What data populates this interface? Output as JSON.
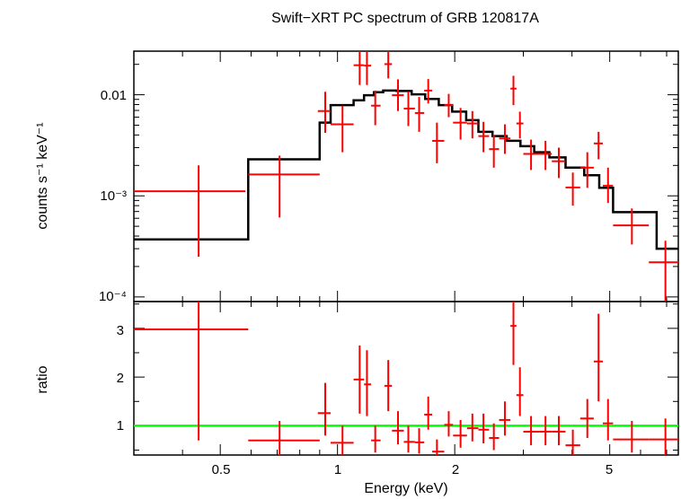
{
  "chart_data": {
    "type": "scatter",
    "title": "Swift−XRT PC spectrum of GRB 120817A",
    "xlabel": "Energy (keV)",
    "xscale": "log",
    "xlim": [
      0.3,
      7.5
    ],
    "x_ticks": [
      {
        "value": 0.5,
        "label": "0.5"
      },
      {
        "value": 1,
        "label": "1"
      },
      {
        "value": 2,
        "label": "2"
      },
      {
        "value": 5,
        "label": "5"
      }
    ],
    "colors": {
      "data": "#ff0000",
      "model": "#000000",
      "unity": "#00ff00",
      "axes": "#000000"
    },
    "panels": [
      {
        "name": "spectrum",
        "ylabel": "counts s⁻¹ keV⁻¹",
        "yscale": "log",
        "ylim": [
          9e-05,
          0.027
        ],
        "y_ticks": [
          {
            "value": 0.01,
            "label": "0.01"
          },
          {
            "value": 0.001,
            "label": "10⁻³"
          },
          {
            "value": 0.0001,
            "label": "10⁻⁴"
          }
        ],
        "model": {
          "name": "model",
          "type": "step",
          "points": [
            {
              "x0": 0.3,
              "x1": 0.59,
              "y": 0.00037
            },
            {
              "x0": 0.59,
              "x1": 0.9,
              "y": 0.0023
            },
            {
              "x0": 0.9,
              "x1": 0.96,
              "y": 0.0053
            },
            {
              "x0": 0.96,
              "x1": 1.1,
              "y": 0.0079
            },
            {
              "x0": 1.1,
              "x1": 1.17,
              "y": 0.0088
            },
            {
              "x0": 1.17,
              "x1": 1.24,
              "y": 0.0099
            },
            {
              "x0": 1.24,
              "x1": 1.31,
              "y": 0.0106
            },
            {
              "x0": 1.31,
              "x1": 1.42,
              "y": 0.011
            },
            {
              "x0": 1.42,
              "x1": 1.55,
              "y": 0.0109
            },
            {
              "x0": 1.55,
              "x1": 1.68,
              "y": 0.0101
            },
            {
              "x0": 1.68,
              "x1": 1.82,
              "y": 0.0091
            },
            {
              "x0": 1.82,
              "x1": 1.97,
              "y": 0.0079
            },
            {
              "x0": 1.97,
              "x1": 2.14,
              "y": 0.0068
            },
            {
              "x0": 2.14,
              "x1": 2.3,
              "y": 0.0056
            },
            {
              "x0": 2.3,
              "x1": 2.5,
              "y": 0.0043
            },
            {
              "x0": 2.5,
              "x1": 2.72,
              "y": 0.0039
            },
            {
              "x0": 2.72,
              "x1": 2.95,
              "y": 0.0035
            },
            {
              "x0": 2.95,
              "x1": 3.2,
              "y": 0.0031
            },
            {
              "x0": 3.2,
              "x1": 3.5,
              "y": 0.0027
            },
            {
              "x0": 3.5,
              "x1": 3.85,
              "y": 0.0024
            },
            {
              "x0": 3.85,
              "x1": 4.3,
              "y": 0.0019
            },
            {
              "x0": 4.3,
              "x1": 4.7,
              "y": 0.0016
            },
            {
              "x0": 4.7,
              "x1": 5.1,
              "y": 0.0012
            },
            {
              "x0": 5.1,
              "x1": 6.6,
              "y": 0.00069
            },
            {
              "x0": 6.6,
              "x1": 7.5,
              "y": 0.0003
            }
          ]
        },
        "series": [
          {
            "name": "data",
            "points": [
              {
                "x0": 0.3,
                "x1": 0.58,
                "x": 0.44,
                "y": 0.00111,
                "ylo": 0.00025,
                "yhi": 0.002
              },
              {
                "x0": 0.59,
                "x1": 0.9,
                "x": 0.71,
                "y": 0.00163,
                "ylo": 0.00061,
                "yhi": 0.0025
              },
              {
                "x0": 0.89,
                "x1": 0.96,
                "x": 0.93,
                "y": 0.0069,
                "ylo": 0.0042,
                "yhi": 0.0107
              },
              {
                "x0": 0.96,
                "x1": 1.1,
                "x": 1.03,
                "y": 0.0051,
                "ylo": 0.0027,
                "yhi": 0.0078
              },
              {
                "x0": 1.1,
                "x1": 1.17,
                "x": 1.14,
                "y": 0.0196,
                "ylo": 0.0125,
                "yhi": 0.028
              },
              {
                "x0": 1.17,
                "x1": 1.22,
                "x": 1.19,
                "y": 0.0194,
                "ylo": 0.0125,
                "yhi": 0.028
              },
              {
                "x0": 1.22,
                "x1": 1.29,
                "x": 1.25,
                "y": 0.0078,
                "ylo": 0.005,
                "yhi": 0.011
              },
              {
                "x0": 1.32,
                "x1": 1.38,
                "x": 1.35,
                "y": 0.0201,
                "ylo": 0.0145,
                "yhi": 0.028
              },
              {
                "x0": 1.38,
                "x1": 1.48,
                "x": 1.43,
                "y": 0.0099,
                "ylo": 0.0069,
                "yhi": 0.0142
              },
              {
                "x0": 1.48,
                "x1": 1.58,
                "x": 1.52,
                "y": 0.0073,
                "ylo": 0.0049,
                "yhi": 0.0108
              },
              {
                "x0": 1.58,
                "x1": 1.67,
                "x": 1.62,
                "y": 0.0066,
                "ylo": 0.0043,
                "yhi": 0.0095
              },
              {
                "x0": 1.67,
                "x1": 1.75,
                "x": 1.71,
                "y": 0.011,
                "ylo": 0.0082,
                "yhi": 0.0143
              },
              {
                "x0": 1.75,
                "x1": 1.88,
                "x": 1.8,
                "y": 0.0035,
                "ylo": 0.0021,
                "yhi": 0.0053
              },
              {
                "x0": 1.88,
                "x1": 1.98,
                "x": 1.93,
                "y": 0.0079,
                "ylo": 0.006,
                "yhi": 0.0102
              },
              {
                "x0": 1.98,
                "x1": 2.15,
                "x": 2.07,
                "y": 0.0053,
                "ylo": 0.0036,
                "yhi": 0.0074
              },
              {
                "x0": 2.15,
                "x1": 2.3,
                "x": 2.22,
                "y": 0.0052,
                "ylo": 0.0037,
                "yhi": 0.0069
              },
              {
                "x0": 2.3,
                "x1": 2.45,
                "x": 2.37,
                "y": 0.0039,
                "ylo": 0.0027,
                "yhi": 0.0054
              },
              {
                "x0": 2.45,
                "x1": 2.6,
                "x": 2.52,
                "y": 0.0029,
                "ylo": 0.0019,
                "yhi": 0.004
              },
              {
                "x0": 2.6,
                "x1": 2.78,
                "x": 2.69,
                "y": 0.0037,
                "ylo": 0.0026,
                "yhi": 0.0051
              },
              {
                "x0": 2.78,
                "x1": 2.88,
                "x": 2.83,
                "y": 0.0115,
                "ylo": 0.0079,
                "yhi": 0.0154
              },
              {
                "x0": 2.88,
                "x1": 3.0,
                "x": 2.94,
                "y": 0.0052,
                "ylo": 0.0037,
                "yhi": 0.0068
              },
              {
                "x0": 3.0,
                "x1": 3.3,
                "x": 3.14,
                "y": 0.0026,
                "ylo": 0.0018,
                "yhi": 0.0036
              },
              {
                "x0": 3.3,
                "x1": 3.55,
                "x": 3.42,
                "y": 0.0026,
                "ylo": 0.0018,
                "yhi": 0.0035
              },
              {
                "x0": 3.55,
                "x1": 3.85,
                "x": 3.7,
                "y": 0.0022,
                "ylo": 0.0015,
                "yhi": 0.003
              },
              {
                "x0": 3.85,
                "x1": 4.2,
                "x": 4.02,
                "y": 0.00121,
                "ylo": 0.0008,
                "yhi": 0.0017
              },
              {
                "x0": 4.2,
                "x1": 4.55,
                "x": 4.38,
                "y": 0.0019,
                "ylo": 0.0012,
                "yhi": 0.0027
              },
              {
                "x0": 4.55,
                "x1": 4.8,
                "x": 4.68,
                "y": 0.0033,
                "ylo": 0.0023,
                "yhi": 0.0043
              },
              {
                "x0": 4.8,
                "x1": 5.1,
                "x": 4.95,
                "y": 0.00126,
                "ylo": 0.00085,
                "yhi": 0.0019
              },
              {
                "x0": 5.1,
                "x1": 6.3,
                "x": 5.7,
                "y": 0.00051,
                "ylo": 0.00033,
                "yhi": 0.00075
              },
              {
                "x0": 6.3,
                "x1": 7.5,
                "x": 6.95,
                "y": 0.00022,
                "ylo": 9e-05,
                "yhi": 0.00036
              }
            ]
          }
        ]
      },
      {
        "name": "ratio",
        "ylabel": "ratio",
        "yscale": "linear",
        "ylim": [
          0.4,
          3.55
        ],
        "y_ticks": [
          {
            "value": 1,
            "label": "1"
          },
          {
            "value": 2,
            "label": "2"
          },
          {
            "value": 3,
            "label": "3"
          }
        ],
        "reference_line": {
          "y": 1,
          "color": "#00ff00"
        },
        "series": [
          {
            "name": "data",
            "points": [
              {
                "x0": 0.3,
                "x1": 0.59,
                "x": 0.44,
                "y": 2.98,
                "ylo": 0.7,
                "yhi": 3.55
              },
              {
                "x0": 0.59,
                "x1": 0.9,
                "x": 0.71,
                "y": 0.7,
                "ylo": 0.4,
                "yhi": 1.1
              },
              {
                "x0": 0.89,
                "x1": 0.96,
                "x": 0.93,
                "y": 1.26,
                "ylo": 0.8,
                "yhi": 1.88
              },
              {
                "x0": 0.96,
                "x1": 1.1,
                "x": 1.03,
                "y": 0.65,
                "ylo": 0.4,
                "yhi": 1.0
              },
              {
                "x0": 1.1,
                "x1": 1.17,
                "x": 1.14,
                "y": 1.95,
                "ylo": 1.25,
                "yhi": 2.65
              },
              {
                "x0": 1.17,
                "x1": 1.22,
                "x": 1.19,
                "y": 1.85,
                "ylo": 1.2,
                "yhi": 2.55
              },
              {
                "x0": 1.22,
                "x1": 1.29,
                "x": 1.25,
                "y": 0.7,
                "ylo": 0.45,
                "yhi": 1.0
              },
              {
                "x0": 1.32,
                "x1": 1.38,
                "x": 1.35,
                "y": 1.82,
                "ylo": 1.3,
                "yhi": 2.35
              },
              {
                "x0": 1.38,
                "x1": 1.48,
                "x": 1.43,
                "y": 0.9,
                "ylo": 0.62,
                "yhi": 1.3
              },
              {
                "x0": 1.48,
                "x1": 1.58,
                "x": 1.52,
                "y": 0.67,
                "ylo": 0.45,
                "yhi": 1.0
              },
              {
                "x0": 1.58,
                "x1": 1.67,
                "x": 1.62,
                "y": 0.66,
                "ylo": 0.43,
                "yhi": 0.95
              },
              {
                "x0": 1.67,
                "x1": 1.75,
                "x": 1.71,
                "y": 1.23,
                "ylo": 0.92,
                "yhi": 1.6
              },
              {
                "x0": 1.75,
                "x1": 1.88,
                "x": 1.8,
                "y": 0.47,
                "ylo": 0.4,
                "yhi": 0.72
              },
              {
                "x0": 1.88,
                "x1": 1.98,
                "x": 1.93,
                "y": 1.02,
                "ylo": 0.78,
                "yhi": 1.3
              },
              {
                "x0": 1.98,
                "x1": 2.15,
                "x": 2.07,
                "y": 0.8,
                "ylo": 0.55,
                "yhi": 1.12
              },
              {
                "x0": 2.15,
                "x1": 2.3,
                "x": 2.22,
                "y": 0.95,
                "ylo": 0.68,
                "yhi": 1.25
              },
              {
                "x0": 2.3,
                "x1": 2.45,
                "x": 2.37,
                "y": 0.92,
                "ylo": 0.64,
                "yhi": 1.25
              },
              {
                "x0": 2.45,
                "x1": 2.6,
                "x": 2.52,
                "y": 0.75,
                "ylo": 0.5,
                "yhi": 1.05
              },
              {
                "x0": 2.6,
                "x1": 2.78,
                "x": 2.69,
                "y": 1.12,
                "ylo": 0.8,
                "yhi": 1.5
              },
              {
                "x0": 2.78,
                "x1": 2.88,
                "x": 2.83,
                "y": 3.05,
                "ylo": 2.25,
                "yhi": 3.55
              },
              {
                "x0": 2.88,
                "x1": 3.0,
                "x": 2.94,
                "y": 1.63,
                "ylo": 1.2,
                "yhi": 2.2
              },
              {
                "x0": 3.0,
                "x1": 3.3,
                "x": 3.14,
                "y": 0.88,
                "ylo": 0.6,
                "yhi": 1.2
              },
              {
                "x0": 3.3,
                "x1": 3.55,
                "x": 3.42,
                "y": 0.88,
                "ylo": 0.6,
                "yhi": 1.2
              },
              {
                "x0": 3.55,
                "x1": 3.85,
                "x": 3.7,
                "y": 0.88,
                "ylo": 0.6,
                "yhi": 1.2
              },
              {
                "x0": 3.85,
                "x1": 4.2,
                "x": 4.02,
                "y": 0.6,
                "ylo": 0.4,
                "yhi": 0.92
              },
              {
                "x0": 4.2,
                "x1": 4.55,
                "x": 4.38,
                "y": 1.15,
                "ylo": 0.75,
                "yhi": 1.55
              },
              {
                "x0": 4.55,
                "x1": 4.8,
                "x": 4.68,
                "y": 2.32,
                "ylo": 1.5,
                "yhi": 3.3
              },
              {
                "x0": 4.8,
                "x1": 5.1,
                "x": 4.95,
                "y": 1.05,
                "ylo": 0.7,
                "yhi": 1.55
              },
              {
                "x0": 5.1,
                "x1": 6.3,
                "x": 5.7,
                "y": 0.72,
                "ylo": 0.45,
                "yhi": 1.1
              },
              {
                "x0": 6.3,
                "x1": 7.5,
                "x": 6.95,
                "y": 0.72,
                "ylo": 0.4,
                "yhi": 1.15
              }
            ]
          }
        ]
      }
    ]
  }
}
